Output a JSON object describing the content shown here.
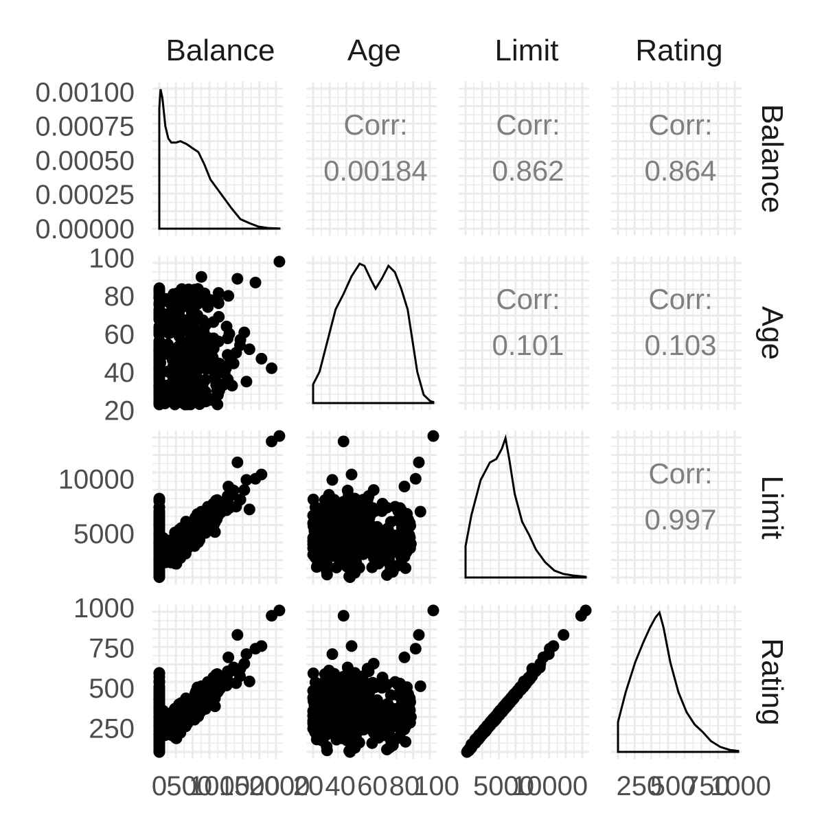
{
  "chart_data": {
    "type": "scatter",
    "variables": [
      "Balance",
      "Age",
      "Limit",
      "Rating"
    ],
    "diagonal": "density",
    "upper_triangle": "correlation",
    "lower_triangle": "scatter",
    "corr_label": "Corr:",
    "correlations": [
      {
        "row": "Balance",
        "col": "Age",
        "value": "0.00184"
      },
      {
        "row": "Balance",
        "col": "Limit",
        "value": "0.862"
      },
      {
        "row": "Balance",
        "col": "Rating",
        "value": "0.864"
      },
      {
        "row": "Age",
        "col": "Limit",
        "value": "0.101"
      },
      {
        "row": "Age",
        "col": "Rating",
        "value": "0.103"
      },
      {
        "row": "Limit",
        "col": "Rating",
        "value": "0.997"
      }
    ],
    "ranges": {
      "Balance": [
        0,
        2000
      ],
      "Age": [
        23,
        98
      ],
      "Limit": [
        855,
        13913
      ],
      "Rating": [
        93,
        982
      ]
    },
    "x_tick_labels": {
      "Balance": [
        "0",
        "500",
        "1000",
        "1500",
        "2000"
      ],
      "Age": [
        "20",
        "40",
        "60",
        "80",
        "100"
      ],
      "Limit": [
        "5000",
        "10000"
      ],
      "Rating": [
        "250",
        "500",
        "750",
        "1000"
      ]
    },
    "y_tick_labels": {
      "Balance": [
        "0.00000",
        "0.00025",
        "0.00050",
        "0.00075",
        "0.00100"
      ],
      "Age": [
        "20",
        "40",
        "60",
        "80",
        "100"
      ],
      "Limit": [
        "5000",
        "10000"
      ],
      "Rating": [
        "250",
        "500",
        "750",
        "1000"
      ]
    },
    "density_ylim": [
      0,
      0.00105
    ],
    "balance_density": [
      [
        0,
        0.00088
      ],
      [
        20,
        0.00102
      ],
      [
        50,
        0.00096
      ],
      [
        100,
        0.00075
      ],
      [
        150,
        0.00066
      ],
      [
        200,
        0.00063
      ],
      [
        280,
        0.00063
      ],
      [
        350,
        0.00064
      ],
      [
        450,
        0.00062
      ],
      [
        550,
        0.00059
      ],
      [
        650,
        0.00056
      ],
      [
        750,
        0.00047
      ],
      [
        850,
        0.00036
      ],
      [
        950,
        0.0003
      ],
      [
        1050,
        0.00024
      ],
      [
        1200,
        0.00015
      ],
      [
        1350,
        7e-05
      ],
      [
        1500,
        4e-05
      ],
      [
        1650,
        1.5e-05
      ],
      [
        1800,
        5e-06
      ],
      [
        1999,
        1e-06
      ]
    ],
    "age_density": [
      [
        23,
        0.00018
      ],
      [
        27,
        0.0003
      ],
      [
        32,
        0.0006
      ],
      [
        37,
        0.0009
      ],
      [
        42,
        0.00105
      ],
      [
        47,
        0.00122
      ],
      [
        52,
        0.00134
      ],
      [
        55,
        0.00132
      ],
      [
        59,
        0.00119
      ],
      [
        62,
        0.0011
      ],
      [
        66,
        0.0012
      ],
      [
        70,
        0.00132
      ],
      [
        74,
        0.00126
      ],
      [
        78,
        0.0011
      ],
      [
        82,
        0.0009
      ],
      [
        85,
        0.0006
      ],
      [
        88,
        0.0003
      ],
      [
        92,
        8e-05
      ],
      [
        96,
        2e-05
      ],
      [
        98,
        1e-05
      ]
    ],
    "limit_density": [
      [
        855,
        4.5e-05
      ],
      [
        1500,
        9e-05
      ],
      [
        2500,
        0.00014
      ],
      [
        3500,
        0.000165
      ],
      [
        4200,
        0.00017
      ],
      [
        4800,
        0.000185
      ],
      [
        5200,
        0.0002
      ],
      [
        5600,
        0.00017
      ],
      [
        6200,
        0.00012
      ],
      [
        7000,
        8e-05
      ],
      [
        7800,
        6e-05
      ],
      [
        8500,
        4e-05
      ],
      [
        9500,
        2.2e-05
      ],
      [
        10500,
        1e-05
      ],
      [
        11500,
        5e-06
      ],
      [
        12500,
        3e-06
      ],
      [
        13913,
        1e-06
      ]
    ],
    "rating_density": [
      [
        93,
        0.0006
      ],
      [
        150,
        0.0012
      ],
      [
        220,
        0.0018
      ],
      [
        280,
        0.0022
      ],
      [
        330,
        0.0025
      ],
      [
        370,
        0.0027
      ],
      [
        400,
        0.0028
      ],
      [
        430,
        0.0025
      ],
      [
        480,
        0.0018
      ],
      [
        540,
        0.0012
      ],
      [
        600,
        0.0008
      ],
      [
        660,
        0.00055
      ],
      [
        720,
        0.0004
      ],
      [
        780,
        0.00022
      ],
      [
        850,
        0.0001
      ],
      [
        920,
        4e-05
      ],
      [
        982,
        2e-05
      ]
    ],
    "scatter_outliers": [
      {
        "Balance": 1999,
        "Age": 98,
        "Limit": 13913,
        "Rating": 982
      },
      {
        "Balance": 1870,
        "Age": 42,
        "Limit": 13414,
        "Rating": 949
      },
      {
        "Balance": 1600,
        "Age": 87,
        "Limit": 10000,
        "Rating": 744
      },
      {
        "Balance": 1300,
        "Age": 89,
        "Limit": 11500,
        "Rating": 830
      },
      {
        "Balance": 700,
        "Age": 90,
        "Limit": 7000,
        "Rating": 510
      },
      {
        "Balance": 1150,
        "Age": 80,
        "Limit": 9300,
        "Rating": 690
      },
      {
        "Balance": 400,
        "Age": 79,
        "Limit": 5200,
        "Rating": 390
      },
      {
        "Balance": 1700,
        "Age": 47,
        "Limit": 10400,
        "Rating": 760
      },
      {
        "Balance": 1450,
        "Age": 35,
        "Limit": 9900,
        "Rating": 710
      },
      {
        "Balance": 1350,
        "Age": 57,
        "Limit": 8100,
        "Rating": 620
      },
      {
        "Balance": 1500,
        "Age": 52,
        "Limit": 7200,
        "Rating": 540
      }
    ]
  }
}
